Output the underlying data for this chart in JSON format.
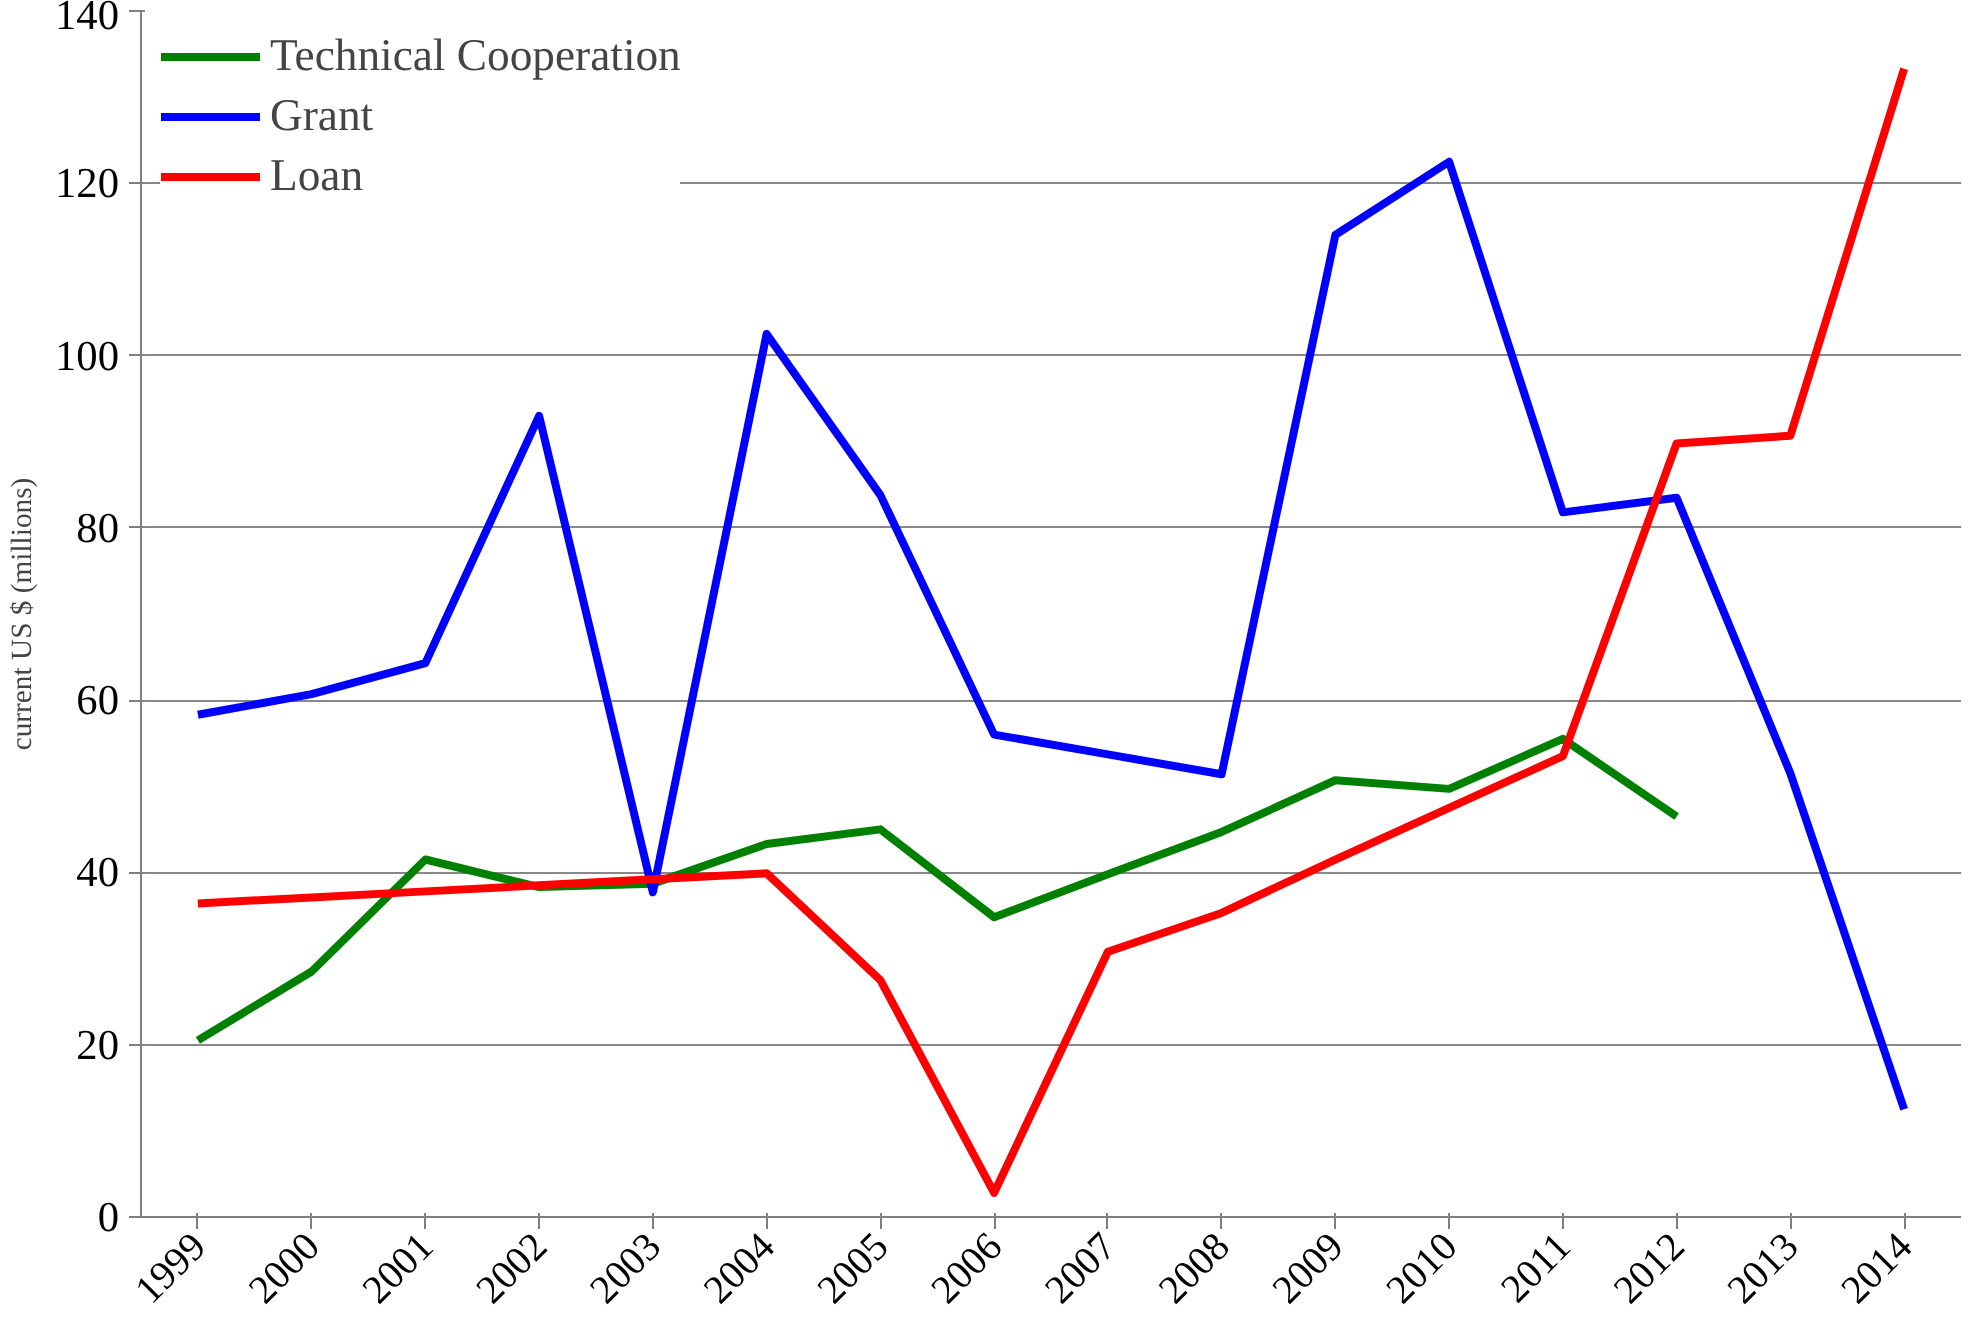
{
  "chart_data": {
    "type": "line",
    "ylabel": "current US $ (millions)",
    "categories": [
      "1999",
      "2000",
      "2001",
      "2002",
      "2003",
      "2004",
      "2005",
      "2006",
      "2007",
      "2008",
      "2009",
      "2010",
      "2011",
      "2012",
      "2013",
      "2014"
    ],
    "series": [
      {
        "name": "Technical Cooperation",
        "color": "#008000",
        "values": [
          20.5,
          28.5,
          41.5,
          38.3,
          38.7,
          43.3,
          45,
          34.8,
          39.8,
          44.7,
          50.7,
          49.7,
          55.5,
          46.5,
          null,
          null
        ]
      },
      {
        "name": "Grant",
        "color": "#0000ff",
        "values": [
          58.3,
          60.7,
          64.3,
          93,
          37.7,
          102.5,
          83.8,
          56,
          53.7,
          51.4,
          114,
          122.5,
          81.8,
          83.5,
          51.5,
          12.5
        ]
      },
      {
        "name": "Loan",
        "color": "#ff0000",
        "values": [
          36.4,
          37.1,
          37.8,
          38.5,
          39.2,
          39.9,
          27.5,
          2.8,
          30.8,
          35.3,
          41.5,
          47.5,
          53.5,
          89.8,
          90.7,
          133.3
        ]
      }
    ],
    "ylim": [
      0,
      140
    ],
    "yticks": [
      0,
      20,
      40,
      60,
      80,
      100,
      120,
      140
    ],
    "grid": "y",
    "legend": "top left",
    "marker": "none",
    "line_style": "solid"
  }
}
